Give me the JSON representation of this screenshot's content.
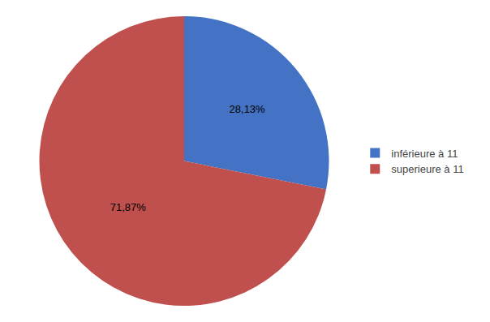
{
  "chart_data": {
    "type": "pie",
    "categories": [
      "inférieure à 11",
      "superieure à 11"
    ],
    "values": [
      28.13,
      71.87
    ],
    "value_labels": [
      "28,13%",
      "71,87%"
    ],
    "colors": [
      "#4472C4",
      "#C0504D"
    ],
    "data_labels": true,
    "legend": "right"
  }
}
